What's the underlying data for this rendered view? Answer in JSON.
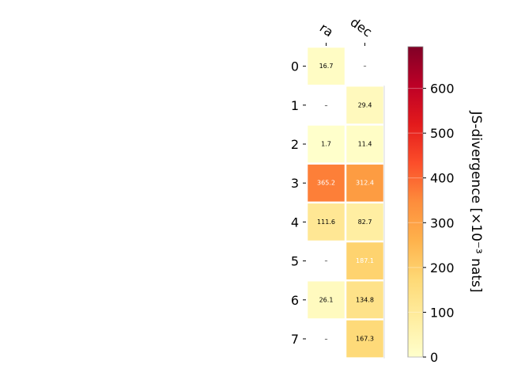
{
  "chart_data": {
    "type": "heatmap",
    "columns": [
      "ra",
      "dec"
    ],
    "rows": [
      "0",
      "1",
      "2",
      "3",
      "4",
      "5",
      "6",
      "7"
    ],
    "values": [
      [
        16.7,
        null
      ],
      [
        null,
        29.4
      ],
      [
        1.7,
        11.4
      ],
      [
        365.2,
        312.4
      ],
      [
        111.6,
        82.7
      ],
      [
        null,
        187.1
      ],
      [
        26.1,
        134.8
      ],
      [
        null,
        167.3
      ]
    ],
    "cell_labels": [
      [
        "16.7",
        "–"
      ],
      [
        "–",
        "29.4"
      ],
      [
        "1.7",
        "11.4"
      ],
      [
        "365.2",
        "312.4"
      ],
      [
        "111.6",
        "82.7"
      ],
      [
        "–",
        "187.1"
      ],
      [
        "26.1",
        "134.8"
      ],
      [
        "–",
        "167.3"
      ]
    ],
    "colorbar": {
      "label": "JS-divergence [×10⁻³ nats]",
      "range": [
        0,
        693
      ],
      "ticks": [
        0,
        100,
        200,
        300,
        400,
        500,
        600
      ],
      "colormap": "YlOrRd"
    },
    "missing_marker": "–"
  }
}
